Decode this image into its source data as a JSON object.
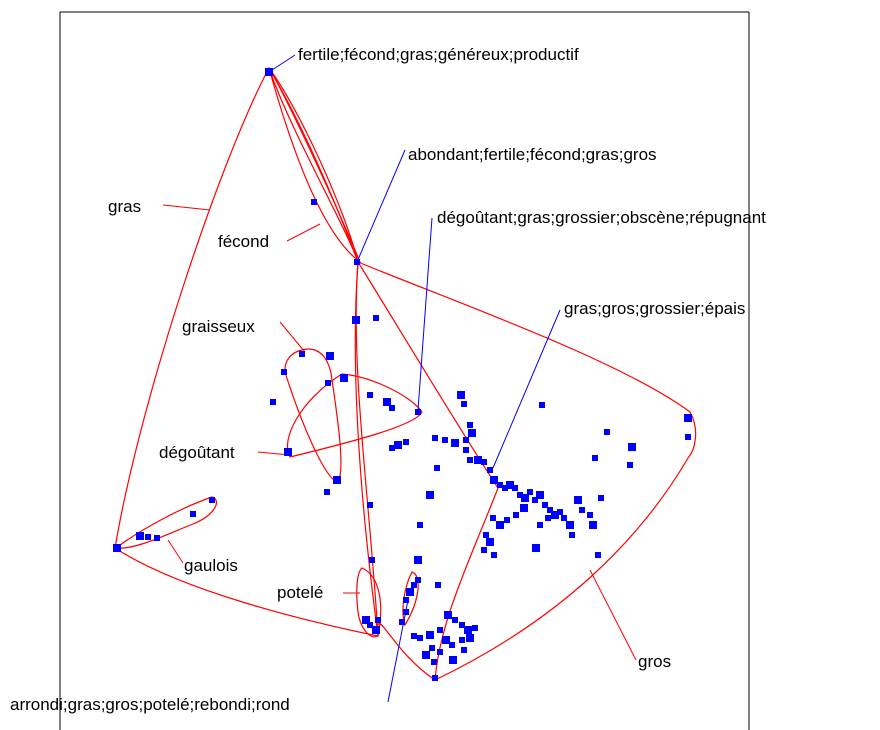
{
  "colors": {
    "frame": "#000000",
    "hull": "#ff0000",
    "point": "#0000ff",
    "clique_leader": "#0000ff",
    "background": "#ffffff"
  },
  "word_labels": {
    "gras": "gras",
    "fecond": "fécond",
    "graisseux": "graisseux",
    "degoutant": "dégoûtant",
    "gaulois": "gaulois",
    "potele": "potelé",
    "gros": "gros"
  },
  "clique_labels": {
    "c1": "fertile;fécond;gras;généreux;productif",
    "c2": "abondant;fertile;fécond;gras;gros",
    "c3": "dégoûtant;gras;grossier;obscène;répugnant",
    "c4": "gras;gros;grossier;épais",
    "c5": "arrondi;gras;gros;potelé;rebondi;rond"
  }
}
